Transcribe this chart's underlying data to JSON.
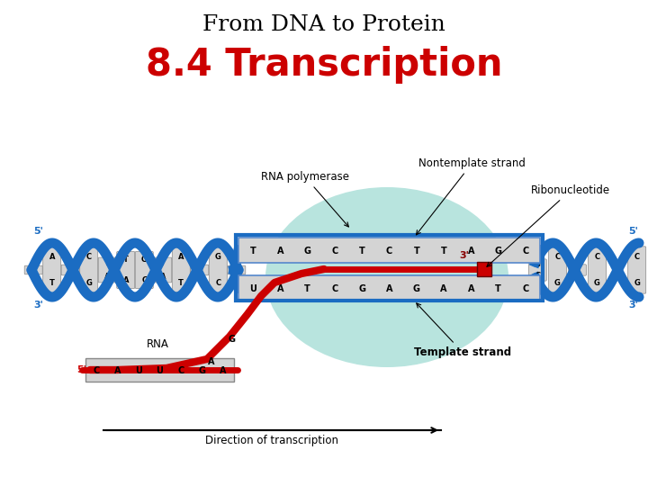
{
  "title_line1": "From DNA to Protein",
  "title_line2": "8.4 Transcription",
  "title_line1_color": "#000000",
  "title_line2_color": "#cc0000",
  "background_color": "#ffffff",
  "title_line1_fontsize": 18,
  "title_line2_fontsize": 30,
  "label_rna_polymerase": "RNA polymerase",
  "label_nontemplate": "Nontemplate strand",
  "label_ribonucleotide": "Ribonucleotide",
  "label_template": "Template strand",
  "label_direction": "Direction of transcription",
  "label_rna": "RNA",
  "dna_color": "#1b6cc2",
  "rna_color": "#cc0000",
  "polymerase_color": "#7ecec4",
  "nuc_bg": "#d4d4d4",
  "nuc_border": "#888888"
}
